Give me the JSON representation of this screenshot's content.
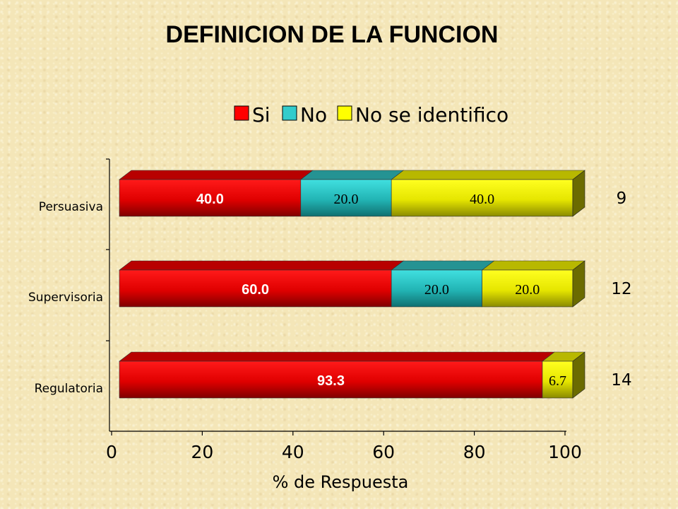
{
  "chart_data": {
    "type": "bar",
    "orientation": "horizontal",
    "stacked": true,
    "title": "DEFINICION DE LA FUNCION",
    "xlabel": "% de Respuesta",
    "ylabel": "",
    "xlim": [
      0,
      100
    ],
    "x_ticks": [
      "0",
      "20",
      "40",
      "60",
      "80",
      "100"
    ],
    "categories": [
      "Persuasiva",
      "Supervisoria",
      "Regulatoria"
    ],
    "series": [
      {
        "name": "Si",
        "color": "#ff0000",
        "values": [
          40.0,
          60.0,
          93.3
        ],
        "labels": [
          "40.0",
          "60.0",
          "93.3"
        ]
      },
      {
        "name": "No",
        "color": "#33cccc",
        "values": [
          20.0,
          20.0,
          0
        ],
        "labels": [
          "20.0",
          "20.0",
          ""
        ]
      },
      {
        "name": "No se identifico",
        "color": "#ffff00",
        "values": [
          40.0,
          20.0,
          6.7
        ],
        "labels": [
          "40.0",
          "20.0",
          "6.7"
        ]
      }
    ],
    "n_labels": [
      "9",
      "12",
      "14"
    ],
    "legend_position": "top",
    "grid": false
  }
}
